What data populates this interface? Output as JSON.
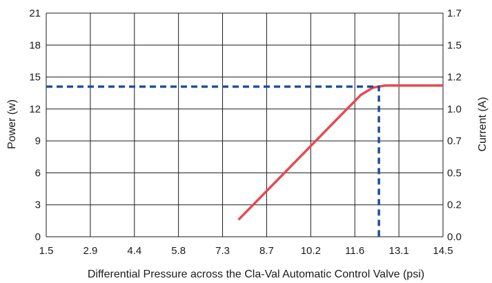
{
  "chart_data": {
    "type": "line",
    "title": "",
    "xlabel": "Differential Pressure across the Cla-Val Automatic Control Valve (psi)",
    "ylabel": "Power (w)",
    "y2label": "Current (A)",
    "xlim": [
      1.5,
      14.5
    ],
    "ylim": [
      0,
      21
    ],
    "y2lim": [
      0.0,
      1.7
    ],
    "grid": true,
    "x_ticks": [
      "1.5",
      "2.9",
      "4.4",
      "5.8",
      "7.3",
      "8.7",
      "10.2",
      "11.6",
      "13.1",
      "14.5"
    ],
    "y_ticks": [
      "0",
      "3",
      "6",
      "9",
      "12",
      "15",
      "18",
      "21"
    ],
    "y2_ticks": [
      "0.0",
      "0.2",
      "0.5",
      "0.7",
      "1.0",
      "1.2",
      "1.5",
      "1.7"
    ],
    "series": [
      {
        "color": "#e8484f",
        "style": "solid",
        "x": [
          7.8,
          11.8,
          12.2,
          12.6,
          14.5
        ],
        "y": [
          1.6,
          13.3,
          14.0,
          14.2,
          14.2
        ]
      },
      {
        "color": "#1f4e9c",
        "style": "dashed",
        "x": [
          1.5,
          12.4,
          12.4
        ],
        "y": [
          14.1,
          14.1,
          0
        ]
      }
    ]
  }
}
